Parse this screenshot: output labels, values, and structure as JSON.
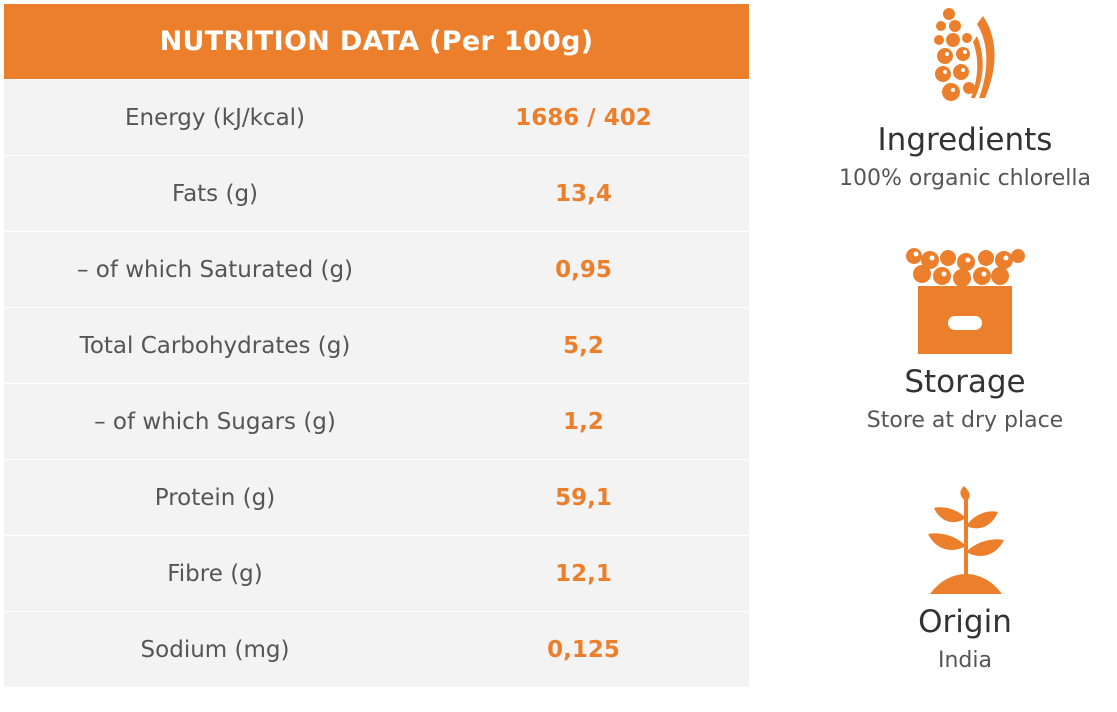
{
  "table": {
    "header": "NUTRITION DATA (Per 100g)",
    "rows": [
      {
        "label": "Energy (kJ/kcal)",
        "value": "1686 / 402"
      },
      {
        "label": "Fats (g)",
        "value": "13,4"
      },
      {
        "label": "– of which Saturated (g)",
        "value": "0,95"
      },
      {
        "label": "Total Carbohydrates (g)",
        "value": "5,2"
      },
      {
        "label": "– of which Sugars (g)",
        "value": "1,2"
      },
      {
        "label": "Protein (g)",
        "value": "59,1"
      },
      {
        "label": "Fibre (g)",
        "value": "12,1"
      },
      {
        "label": "Sodium (mg)",
        "value": "0,125"
      }
    ]
  },
  "ingredients": {
    "icon": "grain-berries-icon",
    "title": "Ingredients",
    "text": "100% organic chlorella"
  },
  "storage": {
    "icon": "fruit-crate-icon",
    "title": "Storage",
    "text": "Store at dry place"
  },
  "origin": {
    "icon": "plant-sprout-icon",
    "title": "Origin",
    "text": "India"
  },
  "colors": {
    "accent": "#ec7f2c",
    "row_bg": "#f3f3f3",
    "label_text": "#555555"
  }
}
